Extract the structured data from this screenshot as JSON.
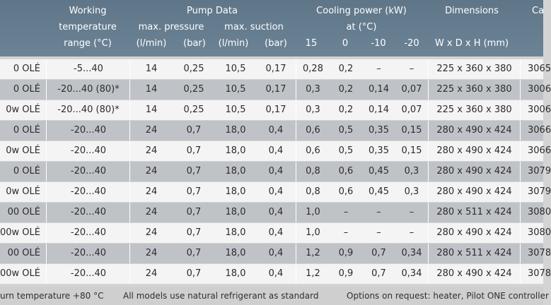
{
  "header": {
    "working_temp": [
      "Working",
      "temperature",
      "range (°C)"
    ],
    "pump_data": "Pump Data",
    "max_pressure": "max. pressure",
    "max_suction": "max. suction",
    "lmin_1": "(l/min)",
    "bar_1": "(bar)",
    "lmin_2": "(l/min)",
    "bar_2": "(bar)",
    "cooling_power": "Cooling power (kW)",
    "at_c": "at (°C)",
    "temps": [
      "15",
      "0",
      "-10",
      "-20"
    ],
    "dimensions": "Dimensions",
    "wdh": "W x D x H (mm)",
    "cat": "Ca"
  },
  "rows": [
    {
      "model": "0 OLÉ",
      "temp": "-5...40",
      "p_lmin": "14",
      "p_bar": "0,25",
      "s_lmin": "10,5",
      "s_bar": "0,17",
      "c15": "0,28",
      "c0": "0,2",
      "cm10": "–",
      "cm20": "–",
      "dims": "225 x 360 x 380",
      "cat": "3065"
    },
    {
      "model": "0 OLÉ",
      "temp": "-20...40 (80)*",
      "p_lmin": "14",
      "p_bar": "0,25",
      "s_lmin": "10,5",
      "s_bar": "0,17",
      "c15": "0,3",
      "c0": "0,2",
      "cm10": "0,14",
      "cm20": "0,07",
      "dims": "225 x 360 x 380",
      "cat": "3006"
    },
    {
      "model": "0w OLÉ",
      "temp": "-20...40 (80)*",
      "p_lmin": "14",
      "p_bar": "0,25",
      "s_lmin": "10,5",
      "s_bar": "0,17",
      "c15": "0,3",
      "c0": "0,2",
      "cm10": "0,14",
      "cm20": "0,07",
      "dims": "225 x 360 x 380",
      "cat": "3006"
    },
    {
      "model": "0 OLÉ",
      "temp": "-20...40",
      "p_lmin": "24",
      "p_bar": "0,7",
      "s_lmin": "18,0",
      "s_bar": "0,4",
      "c15": "0,6",
      "c0": "0,5",
      "cm10": "0,35",
      "cm20": "0,15",
      "dims": "280 x 490 x 424",
      "cat": "3066"
    },
    {
      "model": "0w OLÉ",
      "temp": "-20...40",
      "p_lmin": "24",
      "p_bar": "0,7",
      "s_lmin": "18,0",
      "s_bar": "0,4",
      "c15": "0,6",
      "c0": "0,5",
      "cm10": "0,35",
      "cm20": "0,15",
      "dims": "280 x 490 x 424",
      "cat": "3066"
    },
    {
      "model": "0 OLÉ",
      "temp": "-20...40",
      "p_lmin": "24",
      "p_bar": "0,7",
      "s_lmin": "18,0",
      "s_bar": "0,4",
      "c15": "0,8",
      "c0": "0,6",
      "cm10": "0,45",
      "cm20": "0,3",
      "dims": "280 x 490 x 424",
      "cat": "3079"
    },
    {
      "model": "0w OLÉ",
      "temp": "-20...40",
      "p_lmin": "24",
      "p_bar": "0,7",
      "s_lmin": "18,0",
      "s_bar": "0,4",
      "c15": "0,8",
      "c0": "0,6",
      "cm10": "0,45",
      "cm20": "0,3",
      "dims": "280 x 490 x 424",
      "cat": "3079"
    },
    {
      "model": "00 OLÉ",
      "temp": "-20...40",
      "p_lmin": "24",
      "p_bar": "0,7",
      "s_lmin": "18,0",
      "s_bar": "0,4",
      "c15": "1,0",
      "c0": "–",
      "cm10": "–",
      "cm20": "–",
      "dims": "280 x 511 x 424",
      "cat": "3080"
    },
    {
      "model": "00w OLÉ",
      "temp": "-20...40",
      "p_lmin": "24",
      "p_bar": "0,7",
      "s_lmin": "18,0",
      "s_bar": "0,4",
      "c15": "1,0",
      "c0": "–",
      "cm10": "–",
      "cm20": "–",
      "dims": "280 x 490 x 424",
      "cat": "3080"
    },
    {
      "model": "00 OLÉ",
      "temp": "-20...40",
      "p_lmin": "24",
      "p_bar": "0,7",
      "s_lmin": "18,0",
      "s_bar": "0,4",
      "c15": "1,2",
      "c0": "0,9",
      "cm10": "0,7",
      "cm20": "0,34",
      "dims": "280 x 511 x 424",
      "cat": "3078"
    },
    {
      "model": "00w OLÉ",
      "temp": "-20...40",
      "p_lmin": "24",
      "p_bar": "0,7",
      "s_lmin": "18,0",
      "s_bar": "0,4",
      "c15": "1,2",
      "c0": "0,9",
      "cm10": "0,7",
      "cm20": "0,34",
      "dims": "280 x 490 x 424",
      "cat": "3078"
    }
  ],
  "footer": {
    "note1": "urn temperature +80 °C",
    "note2": "All models use natural refrigerant as standard",
    "note3": "Options on request: heater, Pilot ONE controller"
  },
  "colors": {
    "header_bg": "#667d90",
    "row_light": "#f4f4f4",
    "row_dark": "#bfc3c7"
  }
}
